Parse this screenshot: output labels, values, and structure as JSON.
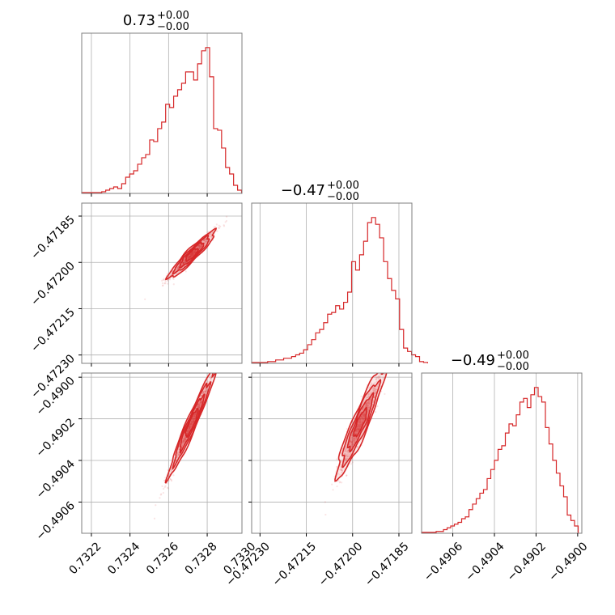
{
  "chart_data": {
    "type": "corner",
    "color": "#d62728",
    "grid": true,
    "params": [
      {
        "range": [
          0.73215,
          0.73298
        ],
        "ticks": [
          0.7322,
          0.7324,
          0.7326,
          0.7328,
          0.733
        ],
        "tick_labels": [
          "0.7322",
          "0.7324",
          "0.7326",
          "0.7328",
          "0.7330"
        ],
        "title": {
          "value": "0.73",
          "plus": "+0.00",
          "minus": "−0.00"
        }
      },
      {
        "range": [
          -0.472327,
          -0.471808
        ],
        "ticks": [
          -0.4723,
          -0.47215,
          -0.472,
          -0.47185
        ],
        "tick_labels": [
          "−0.47230",
          "−0.47215",
          "−0.47200",
          "−0.47185"
        ],
        "title": {
          "value": "−0.47",
          "plus": "+0.00",
          "minus": "−0.00"
        }
      },
      {
        "range": [
          -0.49075,
          -0.48998
        ],
        "ticks": [
          -0.4906,
          -0.4904,
          -0.4902,
          -0.49
        ],
        "tick_labels": [
          "−0.4906",
          "−0.4904",
          "−0.4902",
          "−0.4900"
        ],
        "title": {
          "value": "−0.49",
          "plus": "+0.00",
          "minus": "−0.00"
        }
      }
    ],
    "histograms": [
      {
        "param": 0,
        "bin_start": 0.73215,
        "bin_width": 2.07e-05,
        "counts": [
          0.5,
          0.5,
          0.5,
          0.5,
          0.5,
          1,
          2,
          3,
          4,
          3,
          6,
          10,
          12,
          14,
          18,
          22,
          24,
          33,
          32,
          40,
          44,
          55,
          53,
          60,
          64,
          68,
          75,
          75,
          70,
          80,
          88,
          90,
          72,
          40,
          39,
          28,
          16,
          12,
          5,
          2
        ]
      },
      {
        "param": 1,
        "bin_start": -0.472327,
        "bin_width": 1.295e-05,
        "counts": [
          0.5,
          0.5,
          0.5,
          0.5,
          1,
          1,
          2,
          2,
          3,
          3,
          4,
          5,
          6,
          8,
          11,
          14,
          18,
          20,
          24,
          29,
          30,
          34,
          32,
          36,
          42,
          60,
          55,
          64,
          72,
          83,
          86,
          82,
          74,
          60,
          50,
          43,
          38,
          20,
          9,
          7,
          5,
          4,
          1,
          0.5
        ]
      },
      {
        "param": 2,
        "bin_start": -0.49075,
        "bin_width": 1.75e-05,
        "counts": [
          0.5,
          0.5,
          0.5,
          0.5,
          1,
          1,
          2,
          3,
          4,
          5,
          6,
          8,
          9,
          13,
          16,
          19,
          22,
          24,
          30,
          35,
          40,
          46,
          48,
          55,
          60,
          59,
          65,
          72,
          74,
          69,
          76,
          80,
          75,
          72,
          58,
          49,
          40,
          33,
          26,
          20,
          10,
          7,
          4
        ]
      }
    ],
    "pairs": [
      {
        "x_param": 0,
        "y_param": 1,
        "center": [
          0.73272,
          -0.471975
        ],
        "sd": [
          6e-05,
          3.8e-05
        ],
        "correlation": 0.97
      },
      {
        "x_param": 0,
        "y_param": 2,
        "center": [
          0.73272,
          -0.49022
        ],
        "sd": [
          6e-05,
          0.00013
        ],
        "correlation": 0.985
      },
      {
        "x_param": 1,
        "y_param": 2,
        "center": [
          -0.471975,
          -0.49022
        ],
        "sd": [
          3.8e-05,
          0.00013
        ],
        "correlation": 0.95
      }
    ]
  }
}
